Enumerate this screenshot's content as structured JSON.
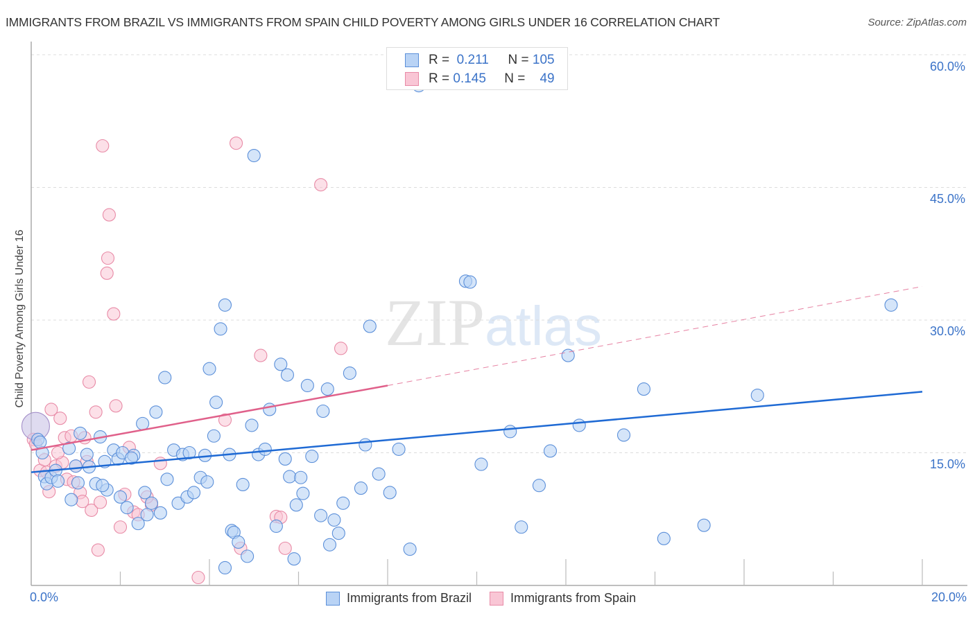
{
  "header": {
    "title": "IMMIGRANTS FROM BRAZIL VS IMMIGRANTS FROM SPAIN CHILD POVERTY AMONG GIRLS UNDER 16 CORRELATION CHART",
    "source": "Source: ZipAtlas.com"
  },
  "legend_top": {
    "brazil": {
      "r_label": "R =",
      "r_value": "0.211",
      "n_label": "N =",
      "n_value": "105"
    },
    "spain": {
      "r_label": "R =",
      "r_value": "0.145",
      "n_label": "N =",
      "n_value": "49"
    }
  },
  "legend_bottom": {
    "brazil": "Immigrants from Brazil",
    "spain": "Immigrants from Spain"
  },
  "axes": {
    "ylabel": "Child Poverty Among Girls Under 16",
    "yticks": [
      "60.0%",
      "45.0%",
      "30.0%",
      "15.0%"
    ],
    "xtick_min": "0.0%",
    "xtick_max": "20.0%"
  },
  "watermark": {
    "zip": "ZIP",
    "atlas": "atlas"
  },
  "colors": {
    "brazil_fill": "#b9d3f5",
    "brazil_stroke": "#5b8fd9",
    "brazil_line": "#1f6ad4",
    "spain_fill": "#f9c6d5",
    "spain_stroke": "#e88aa6",
    "spain_line": "#e0608a",
    "tick_label": "#3b73c8"
  },
  "chart_data": {
    "type": "scatter",
    "title": "IMMIGRANTS FROM BRAZIL VS IMMIGRANTS FROM SPAIN CHILD POVERTY AMONG GIRLS UNDER 16 CORRELATION CHART",
    "xlabel": "",
    "ylabel": "Child Poverty Among Girls Under 16",
    "xlim": [
      0,
      20
    ],
    "ylim": [
      0,
      60
    ],
    "x_unit": "%",
    "y_unit": "%",
    "grid": true,
    "legend_position": "top-center",
    "series": [
      {
        "name": "Immigrants from Brazil",
        "r": 0.211,
        "n": 105,
        "trend": {
          "x0": 0,
          "y0": 12.8,
          "x1": 20,
          "y1": 21.9,
          "style": "solid"
        },
        "points": [
          [
            0.1,
            18.0
          ],
          [
            0.15,
            16.5
          ],
          [
            0.25,
            15.0
          ],
          [
            0.3,
            12.3
          ],
          [
            0.35,
            11.5
          ],
          [
            0.45,
            12.2
          ],
          [
            0.55,
            13.0
          ],
          [
            0.6,
            11.8
          ],
          [
            0.85,
            15.5
          ],
          [
            0.9,
            9.7
          ],
          [
            1.0,
            13.5
          ],
          [
            1.05,
            11.6
          ],
          [
            1.1,
            17.2
          ],
          [
            1.25,
            14.8
          ],
          [
            1.3,
            13.4
          ],
          [
            1.45,
            11.5
          ],
          [
            1.55,
            16.8
          ],
          [
            1.65,
            14.0
          ],
          [
            1.7,
            10.8
          ],
          [
            1.85,
            15.3
          ],
          [
            1.95,
            14.3
          ],
          [
            2.0,
            10.0
          ],
          [
            2.05,
            15.0
          ],
          [
            2.15,
            8.8
          ],
          [
            2.3,
            14.7
          ],
          [
            2.4,
            7.0
          ],
          [
            2.5,
            18.3
          ],
          [
            2.55,
            10.5
          ],
          [
            2.6,
            8.0
          ],
          [
            2.7,
            9.3
          ],
          [
            2.8,
            19.6
          ],
          [
            2.9,
            8.2
          ],
          [
            3.0,
            23.5
          ],
          [
            3.05,
            12.0
          ],
          [
            3.2,
            15.3
          ],
          [
            3.3,
            9.3
          ],
          [
            3.4,
            14.8
          ],
          [
            3.5,
            10.0
          ],
          [
            3.55,
            15.0
          ],
          [
            3.65,
            10.5
          ],
          [
            3.8,
            12.2
          ],
          [
            3.9,
            14.7
          ],
          [
            4.0,
            24.5
          ],
          [
            4.1,
            16.9
          ],
          [
            4.15,
            20.7
          ],
          [
            4.25,
            29.0
          ],
          [
            4.35,
            31.7
          ],
          [
            4.35,
            2.0
          ],
          [
            4.45,
            14.8
          ],
          [
            4.5,
            6.2
          ],
          [
            4.55,
            6.0
          ],
          [
            4.65,
            4.9
          ],
          [
            4.75,
            11.4
          ],
          [
            4.85,
            3.3
          ],
          [
            4.95,
            18.1
          ],
          [
            5.0,
            48.6
          ],
          [
            5.1,
            14.8
          ],
          [
            5.25,
            15.4
          ],
          [
            5.35,
            19.9
          ],
          [
            5.5,
            6.7
          ],
          [
            5.6,
            25.0
          ],
          [
            5.7,
            14.3
          ],
          [
            5.75,
            23.8
          ],
          [
            5.8,
            12.3
          ],
          [
            5.9,
            3.0
          ],
          [
            5.95,
            9.1
          ],
          [
            6.1,
            10.4
          ],
          [
            6.2,
            22.6
          ],
          [
            6.3,
            14.6
          ],
          [
            6.5,
            7.9
          ],
          [
            6.55,
            19.7
          ],
          [
            6.65,
            22.2
          ],
          [
            6.7,
            4.6
          ],
          [
            6.8,
            7.4
          ],
          [
            6.9,
            5.9
          ],
          [
            7.0,
            9.3
          ],
          [
            7.15,
            24.0
          ],
          [
            7.4,
            11.0
          ],
          [
            7.5,
            15.9
          ],
          [
            7.6,
            29.3
          ],
          [
            7.8,
            12.6
          ],
          [
            8.05,
            10.5
          ],
          [
            8.25,
            15.4
          ],
          [
            8.5,
            4.1
          ],
          [
            8.7,
            56.5
          ],
          [
            9.75,
            34.4
          ],
          [
            9.85,
            34.3
          ],
          [
            10.1,
            13.7
          ],
          [
            10.75,
            17.4
          ],
          [
            11.0,
            6.6
          ],
          [
            11.4,
            11.3
          ],
          [
            11.65,
            15.2
          ],
          [
            12.05,
            26.0
          ],
          [
            12.3,
            18.1
          ],
          [
            13.3,
            17.0
          ],
          [
            13.75,
            22.2
          ],
          [
            14.2,
            5.3
          ],
          [
            15.1,
            6.8
          ],
          [
            16.3,
            21.5
          ],
          [
            19.3,
            31.7
          ],
          [
            0.2,
            16.2
          ],
          [
            1.6,
            11.3
          ],
          [
            2.25,
            14.4
          ],
          [
            6.05,
            12.2
          ],
          [
            3.95,
            11.7
          ]
        ]
      },
      {
        "name": "Immigrants from Spain",
        "r": 0.145,
        "n": 49,
        "trend": {
          "x0": 0,
          "y0": 15.3,
          "x1": 8.0,
          "y1": 22.6,
          "style": "solid",
          "extended_to": {
            "x": 20,
            "y": 33.8,
            "style": "dashed"
          }
        },
        "points": [
          [
            0.05,
            16.5
          ],
          [
            0.1,
            16.0
          ],
          [
            0.2,
            13.0
          ],
          [
            0.3,
            14.2
          ],
          [
            0.35,
            12.8
          ],
          [
            0.4,
            10.6
          ],
          [
            0.45,
            19.9
          ],
          [
            0.55,
            13.5
          ],
          [
            0.65,
            18.9
          ],
          [
            0.7,
            13.9
          ],
          [
            0.75,
            16.7
          ],
          [
            0.8,
            12.0
          ],
          [
            0.9,
            16.9
          ],
          [
            0.95,
            11.7
          ],
          [
            1.0,
            13.5
          ],
          [
            1.1,
            10.5
          ],
          [
            1.15,
            9.5
          ],
          [
            1.25,
            14.0
          ],
          [
            1.3,
            23.0
          ],
          [
            1.35,
            8.5
          ],
          [
            1.45,
            19.6
          ],
          [
            1.5,
            4.0
          ],
          [
            1.55,
            9.4
          ],
          [
            1.6,
            49.7
          ],
          [
            1.7,
            35.3
          ],
          [
            1.72,
            37.0
          ],
          [
            1.75,
            41.9
          ],
          [
            1.85,
            30.7
          ],
          [
            1.9,
            20.3
          ],
          [
            2.0,
            6.6
          ],
          [
            2.1,
            10.3
          ],
          [
            2.2,
            15.6
          ],
          [
            2.3,
            8.3
          ],
          [
            2.4,
            8.0
          ],
          [
            2.7,
            9.1
          ],
          [
            2.9,
            13.8
          ],
          [
            3.75,
            0.9
          ],
          [
            4.35,
            18.7
          ],
          [
            4.6,
            50.0
          ],
          [
            4.7,
            4.2
          ],
          [
            5.15,
            26.0
          ],
          [
            5.5,
            7.8
          ],
          [
            5.6,
            7.7
          ],
          [
            5.7,
            4.2
          ],
          [
            6.5,
            45.3
          ],
          [
            6.95,
            26.8
          ],
          [
            0.6,
            15.0
          ],
          [
            1.2,
            16.7
          ],
          [
            2.6,
            10.0
          ]
        ]
      }
    ]
  }
}
